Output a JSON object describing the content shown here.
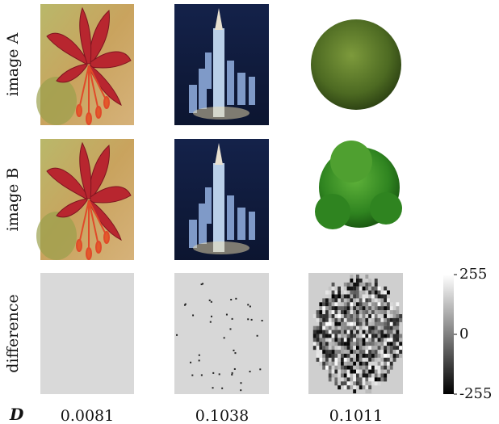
{
  "figure": {
    "row_labels": [
      "image A",
      "image B",
      "difference"
    ],
    "d_label": "D",
    "d_values": [
      0.0081,
      0.1038,
      0.1011
    ],
    "colorbar": {
      "ylim": [
        -255,
        255
      ],
      "yticks": [
        255,
        0,
        -255
      ]
    }
  }
}
